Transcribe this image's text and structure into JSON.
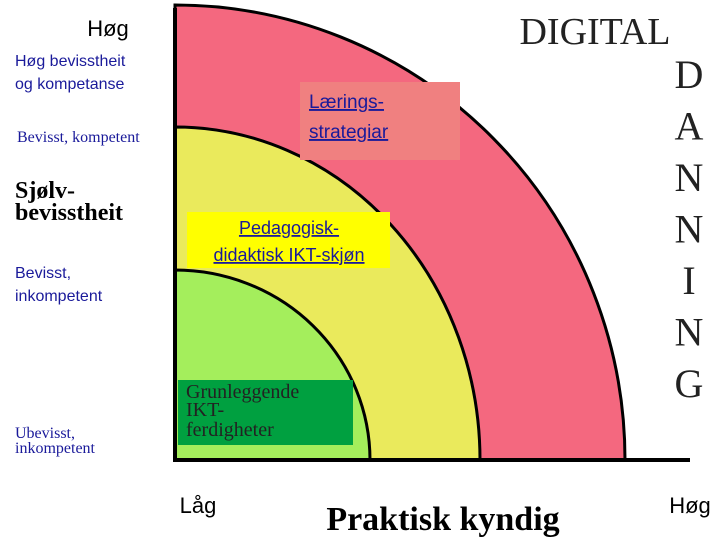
{
  "title": {
    "word": "DIGITAL",
    "vertical": [
      "D",
      "A",
      "N",
      "N",
      "I",
      "N",
      "G"
    ]
  },
  "y_axis": {
    "high": "Høg",
    "label": [
      "Sjølv-",
      "bevisstheit"
    ],
    "levels": [
      [
        "Høg bevisstheit",
        "og kompetanse"
      ],
      [
        "Bevisst, kompetent"
      ],
      [
        "Bevisst,",
        "inkompetent"
      ],
      [
        "Ubevisst,",
        "inkompetent"
      ]
    ]
  },
  "x_axis": {
    "low": "Låg",
    "label": "Praktisk kyndig",
    "high": "Høg"
  },
  "zones": [
    {
      "lines": [
        "Lærings-",
        "strategiar"
      ]
    },
    {
      "lines": [
        "Pedagogisk-",
        "didaktisk IKT-skjøn"
      ]
    },
    {
      "lines": [
        "Grunleggende",
        "IKT-",
        "ferdigheter"
      ]
    }
  ]
}
